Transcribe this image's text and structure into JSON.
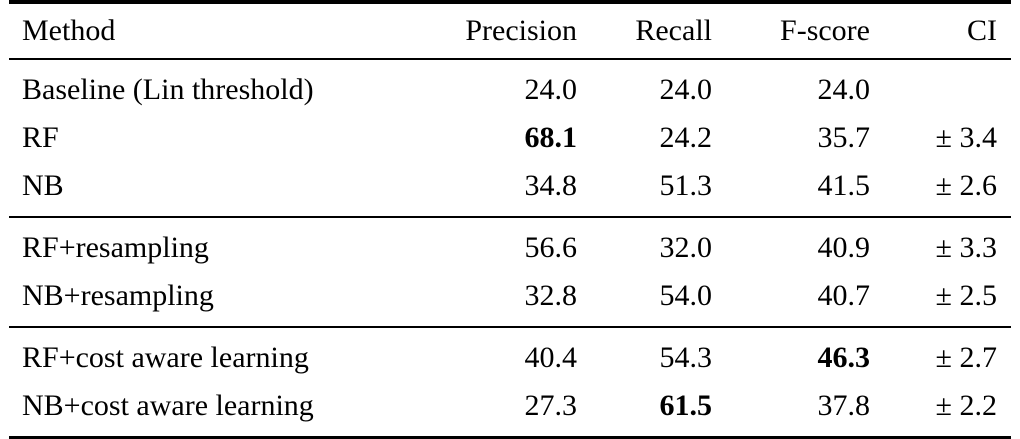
{
  "page": {
    "background": "#ffffff",
    "text_color": "#000000",
    "rule_color": "#000000"
  },
  "table": {
    "column_keys": [
      "method",
      "precision",
      "recall",
      "fscore",
      "ci"
    ],
    "columns": [
      "Method",
      "Precision",
      "Recall",
      "F-score",
      "CI"
    ],
    "groups": [
      {
        "rows": [
          {
            "cells": [
              {
                "text": "Baseline (Lin threshold)"
              },
              {
                "text": "24.0"
              },
              {
                "text": "24.0"
              },
              {
                "text": "24.0"
              },
              {
                "text": ""
              }
            ]
          },
          {
            "cells": [
              {
                "text": "RF"
              },
              {
                "text": "68.1",
                "bold": true
              },
              {
                "text": "24.2"
              },
              {
                "text": "35.7"
              },
              {
                "text": "± 3.4"
              }
            ]
          },
          {
            "cells": [
              {
                "text": "NB"
              },
              {
                "text": "34.8"
              },
              {
                "text": "51.3"
              },
              {
                "text": "41.5"
              },
              {
                "text": "± 2.6"
              }
            ]
          }
        ]
      },
      {
        "rows": [
          {
            "cells": [
              {
                "text": "RF+resampling"
              },
              {
                "text": "56.6"
              },
              {
                "text": "32.0"
              },
              {
                "text": "40.9"
              },
              {
                "text": "± 3.3"
              }
            ]
          },
          {
            "cells": [
              {
                "text": "NB+resampling"
              },
              {
                "text": "32.8"
              },
              {
                "text": "54.0"
              },
              {
                "text": "40.7"
              },
              {
                "text": "± 2.5"
              }
            ]
          }
        ]
      },
      {
        "rows": [
          {
            "cells": [
              {
                "text": "RF+cost aware learning"
              },
              {
                "text": "40.4"
              },
              {
                "text": "54.3"
              },
              {
                "text": "46.3",
                "bold": true
              },
              {
                "text": "± 2.7"
              }
            ]
          },
          {
            "cells": [
              {
                "text": "NB+cost aware learning"
              },
              {
                "text": "27.3"
              },
              {
                "text": "61.5",
                "bold": true
              },
              {
                "text": "37.8"
              },
              {
                "text": "± 2.2"
              }
            ]
          }
        ]
      }
    ]
  },
  "chart_data": {
    "type": "table",
    "columns": [
      "Method",
      "Precision",
      "Recall",
      "F-score",
      "CI"
    ],
    "rows": [
      [
        "Baseline (Lin threshold)",
        24.0,
        24.0,
        24.0,
        null
      ],
      [
        "RF",
        68.1,
        24.2,
        35.7,
        3.4
      ],
      [
        "NB",
        34.8,
        51.3,
        41.5,
        2.6
      ],
      [
        "RF+resampling",
        56.6,
        32.0,
        40.9,
        3.3
      ],
      [
        "NB+resampling",
        32.8,
        54.0,
        40.7,
        2.5
      ],
      [
        "RF+cost aware learning",
        40.4,
        54.3,
        46.3,
        2.7
      ],
      [
        "NB+cost aware learning",
        27.3,
        61.5,
        37.8,
        2.2
      ]
    ],
    "bold_cells": [
      {
        "row": "RF",
        "column": "Precision",
        "value": 68.1
      },
      {
        "row": "RF+cost aware learning",
        "column": "F-score",
        "value": 46.3
      },
      {
        "row": "NB+cost aware learning",
        "column": "Recall",
        "value": 61.5
      }
    ],
    "group_breaks_after_rows": [
      2,
      4
    ]
  }
}
